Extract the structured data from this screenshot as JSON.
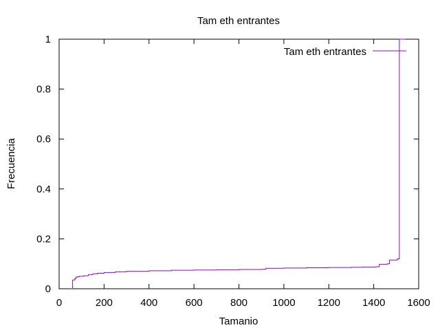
{
  "chart_data": {
    "type": "line",
    "title": "Tam eth entrantes",
    "xlabel": "Tamanio",
    "ylabel": "Frecuencia",
    "xlim": [
      0,
      1600
    ],
    "ylim": [
      0,
      1
    ],
    "x_ticks": [
      "0",
      "200",
      "400",
      "600",
      "800",
      "1000",
      "1200",
      "1400",
      "1600"
    ],
    "y_ticks": [
      "0",
      "0.2",
      "0.4",
      "0.6",
      "0.8",
      "1"
    ],
    "grid": false,
    "legend_position": "top-right",
    "series": [
      {
        "name": "Tam eth entrantes",
        "color": "#9400d3",
        "step": true,
        "x": [
          54,
          60,
          66,
          70,
          74,
          80,
          90,
          110,
          130,
          150,
          170,
          200,
          250,
          300,
          400,
          500,
          600,
          700,
          800,
          900,
          920,
          1000,
          1100,
          1200,
          1300,
          1350,
          1410,
          1425,
          1460,
          1470,
          1500,
          1505,
          1514,
          1514,
          1540
        ],
        "y": [
          0.0,
          0.035,
          0.035,
          0.04,
          0.046,
          0.048,
          0.05,
          0.052,
          0.056,
          0.06,
          0.062,
          0.065,
          0.068,
          0.07,
          0.072,
          0.074,
          0.075,
          0.076,
          0.077,
          0.078,
          0.082,
          0.083,
          0.084,
          0.085,
          0.086,
          0.087,
          0.088,
          0.098,
          0.1,
          0.115,
          0.115,
          0.12,
          0.125,
          1.0,
          1.0
        ]
      }
    ]
  }
}
